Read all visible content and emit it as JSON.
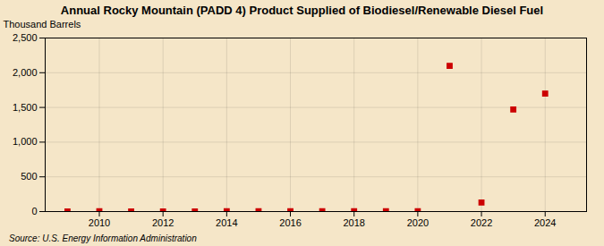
{
  "chart_data": {
    "type": "scatter",
    "title": "Annual Rocky Mountain (PADD 4) Product Supplied of Biodiesel/Renewable Diesel Fuel",
    "ylabel": "Thousand Barrels",
    "source": "Source: U.S. Energy Information Administration",
    "x": [
      2009,
      2010,
      2011,
      2012,
      2013,
      2014,
      2015,
      2016,
      2017,
      2018,
      2019,
      2020,
      2021,
      2022,
      2023,
      2024
    ],
    "values": [
      1,
      3,
      1,
      2,
      2,
      3,
      3,
      3,
      3,
      3,
      3,
      3,
      2100,
      130,
      1470,
      1700
    ],
    "color": "#cc0000",
    "marker": "square",
    "xlim": [
      2008.3,
      2025.3
    ],
    "xticks": [
      2010,
      2012,
      2014,
      2016,
      2018,
      2020,
      2022,
      2024
    ],
    "ylim": [
      0,
      2500
    ],
    "yticks": [
      0,
      500,
      {
        "value": 1000,
        "label": "1,000"
      },
      {
        "value": 1500,
        "label": "1,500"
      },
      {
        "value": 2000,
        "label": "2,000"
      },
      {
        "value": 2500,
        "label": "2,500"
      }
    ],
    "grid": true
  }
}
